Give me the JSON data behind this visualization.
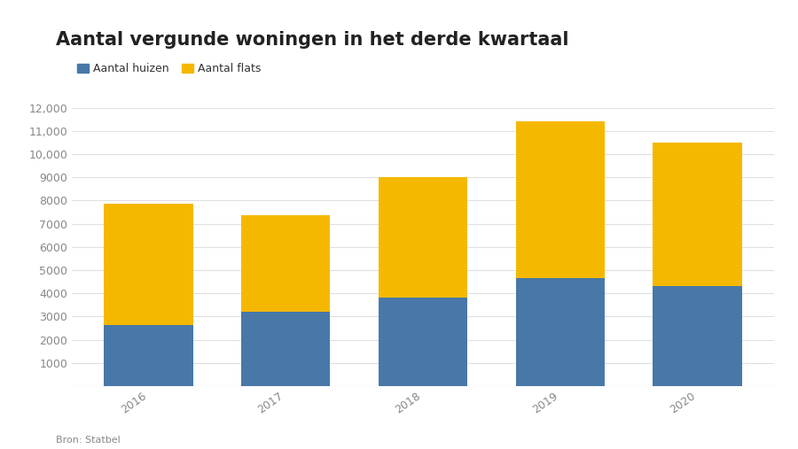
{
  "title": "Aantal vergunde woningen in het derde kwartaal",
  "years": [
    "2016",
    "2017",
    "2018",
    "2019",
    "2020"
  ],
  "huizen": [
    2650,
    3200,
    3800,
    4650,
    4300
  ],
  "flats": [
    5200,
    4150,
    5200,
    6750,
    6200
  ],
  "color_huizen": "#4878a8",
  "color_flats": "#f5b800",
  "ylim": [
    0,
    12000
  ],
  "yticks": [
    0,
    1000,
    2000,
    3000,
    4000,
    5000,
    6000,
    7000,
    8000,
    9000,
    10000,
    11000,
    12000
  ],
  "ytick_labels": [
    "",
    "1000",
    "2000",
    "3000",
    "4000",
    "5000",
    "6000",
    "7000",
    "8000",
    "9000",
    "10,000",
    "11,000",
    "12,000"
  ],
  "legend_huizen": "Aantal huizen",
  "legend_flats": "Aantal flats",
  "source": "Bron: Statbel",
  "background_color": "#ffffff",
  "plot_bg_color": "#ffffff",
  "grid_color": "#e0e0e0",
  "bar_width": 0.65,
  "title_fontsize": 15,
  "tick_fontsize": 9,
  "legend_fontsize": 9
}
